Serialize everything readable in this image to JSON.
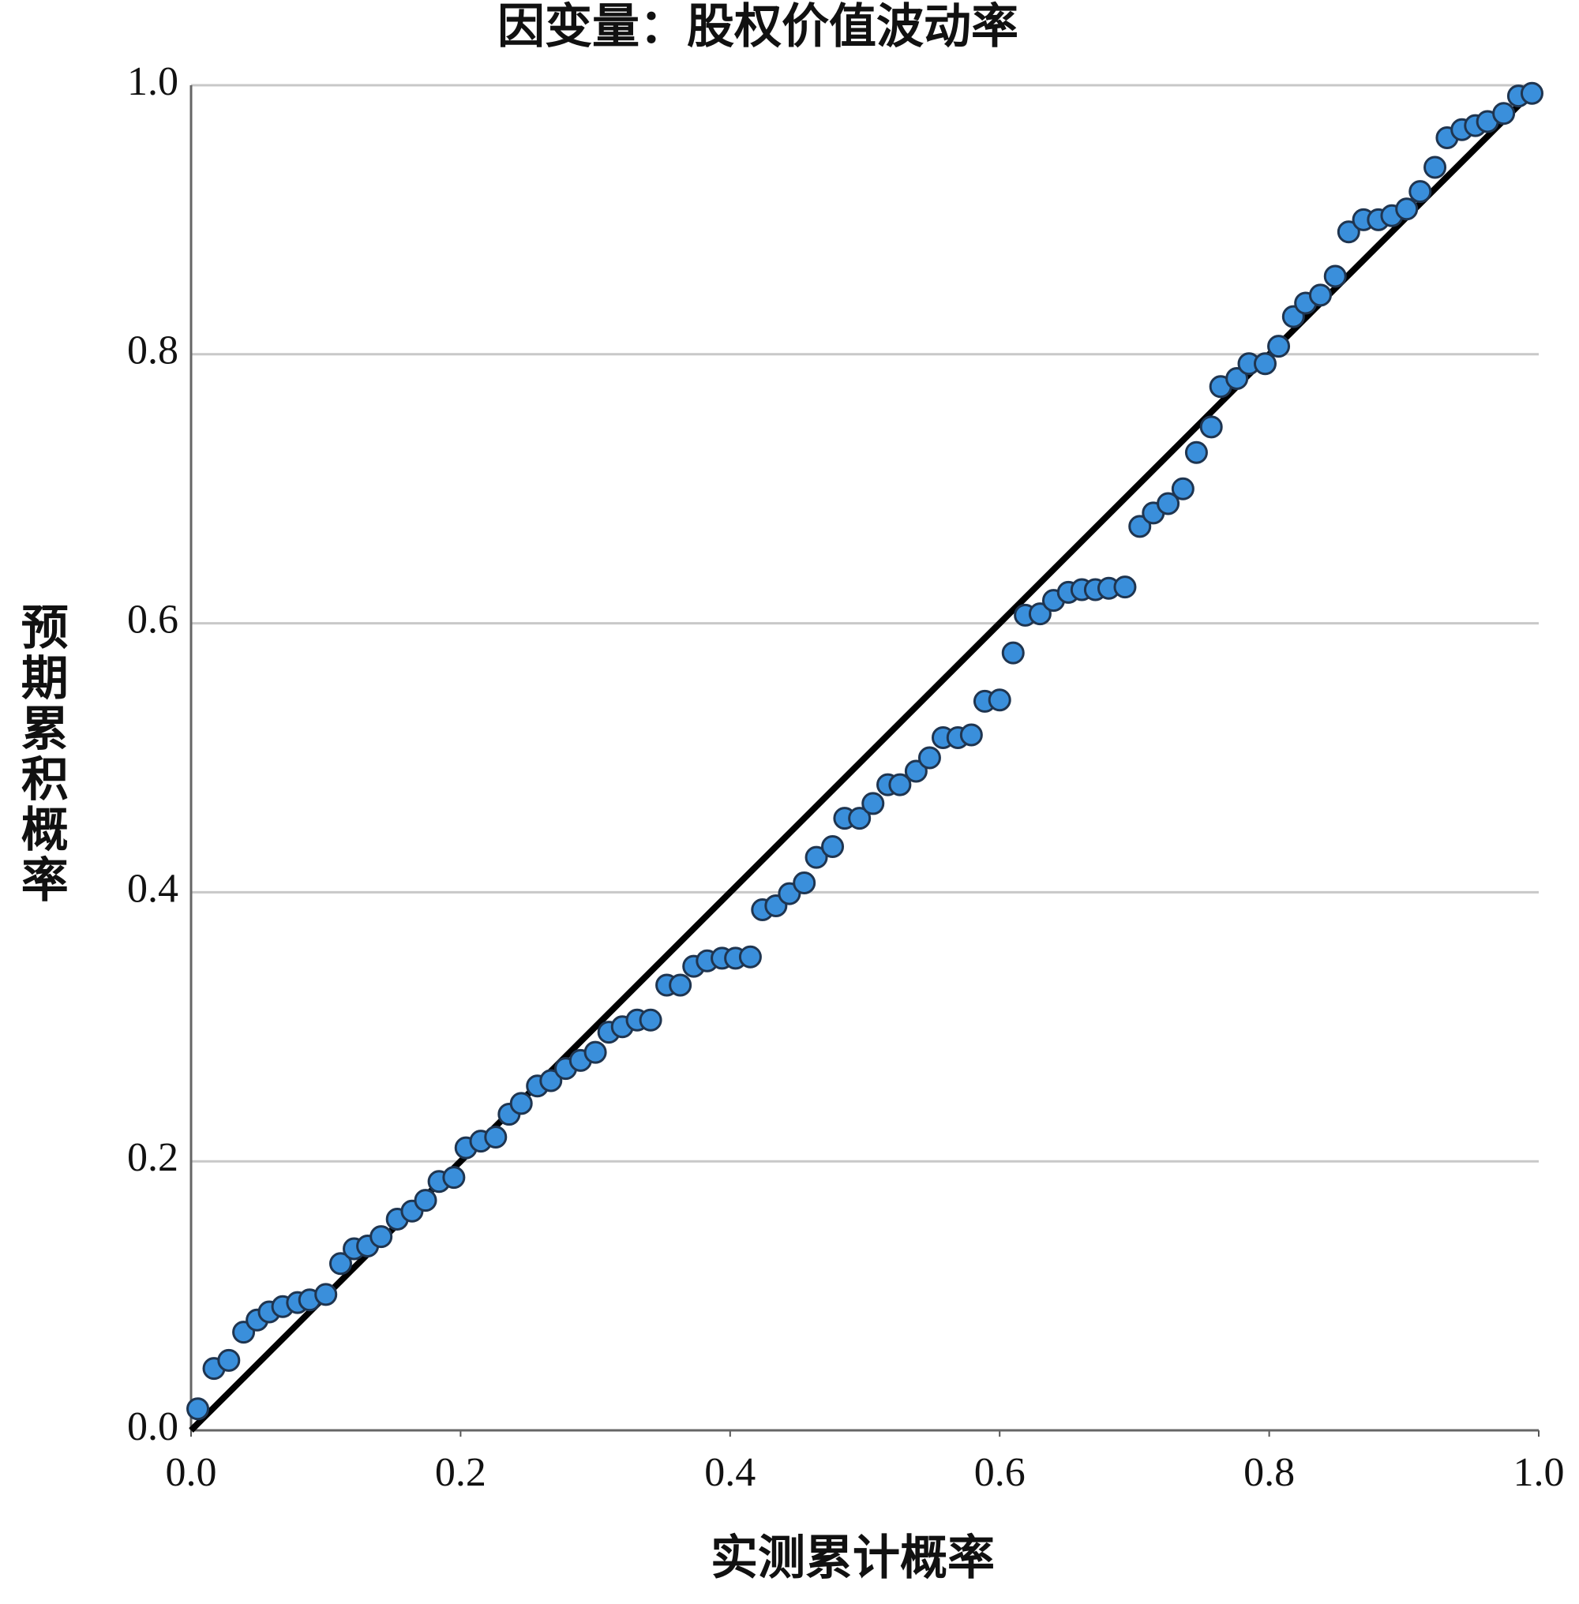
{
  "chart_data": {
    "type": "scatter",
    "title": "因变量：股权价值波动率",
    "x_label": "实测累计概率",
    "y_label": "预期累积概率",
    "xlim": [
      0,
      1
    ],
    "ylim": [
      0,
      1
    ],
    "xticks": [
      {
        "value": 0,
        "label": "0.0"
      },
      0.2,
      0.4,
      0.6,
      0.8,
      {
        "value": 1,
        "label": "1.0"
      }
    ],
    "yticks": [
      {
        "value": 0,
        "label": "0.0"
      },
      0.2,
      0.4,
      0.6,
      0.8,
      {
        "value": 1,
        "label": "1.0"
      }
    ],
    "grid": true,
    "color": "#3a8fdb",
    "x": [
      0.005,
      0.017,
      0.028,
      0.039,
      0.049,
      0.058,
      0.068,
      0.079,
      0.088,
      0.1,
      0.111,
      0.121,
      0.131,
      0.141,
      0.153,
      0.164,
      0.174,
      0.184,
      0.195,
      0.204,
      0.215,
      0.226,
      0.236,
      0.245,
      0.257,
      0.267,
      0.278,
      0.289,
      0.3,
      0.31,
      0.32,
      0.331,
      0.341,
      0.353,
      0.363,
      0.373,
      0.383,
      0.394,
      0.404,
      0.415,
      0.424,
      0.434,
      0.444,
      0.455,
      0.464,
      0.476,
      0.485,
      0.496,
      0.506,
      0.517,
      0.526,
      0.538,
      0.548,
      0.558,
      0.569,
      0.579,
      0.589,
      0.6,
      0.61,
      0.619,
      0.63,
      0.64,
      0.651,
      0.661,
      0.671,
      0.681,
      0.693,
      0.704,
      0.714,
      0.725,
      0.736,
      0.746,
      0.757,
      0.764,
      0.776,
      0.785,
      0.797,
      0.807,
      0.818,
      0.827,
      0.838,
      0.849,
      0.859,
      0.87,
      0.881,
      0.891,
      0.902,
      0.912,
      0.923,
      0.932,
      0.943,
      0.953,
      0.962,
      0.974,
      0.985,
      0.995
    ],
    "y": [
      0.016,
      0.046,
      0.052,
      0.073,
      0.082,
      0.088,
      0.092,
      0.095,
      0.097,
      0.101,
      0.124,
      0.135,
      0.137,
      0.144,
      0.157,
      0.163,
      0.171,
      0.185,
      0.188,
      0.21,
      0.215,
      0.218,
      0.235,
      0.243,
      0.256,
      0.26,
      0.269,
      0.275,
      0.281,
      0.296,
      0.3,
      0.305,
      0.305,
      0.331,
      0.331,
      0.345,
      0.349,
      0.351,
      0.351,
      0.352,
      0.387,
      0.39,
      0.399,
      0.407,
      0.426,
      0.434,
      0.455,
      0.455,
      0.466,
      0.48,
      0.48,
      0.49,
      0.5,
      0.515,
      0.515,
      0.517,
      0.542,
      0.543,
      0.578,
      0.606,
      0.607,
      0.617,
      0.623,
      0.625,
      0.625,
      0.626,
      0.627,
      0.672,
      0.682,
      0.689,
      0.7,
      0.727,
      0.746,
      0.776,
      0.782,
      0.793,
      0.793,
      0.806,
      0.828,
      0.838,
      0.844,
      0.858,
      0.891,
      0.9,
      0.9,
      0.903,
      0.908,
      0.921,
      0.939,
      0.961,
      0.967,
      0.97,
      0.973,
      0.979,
      0.992,
      0.994
    ]
  }
}
